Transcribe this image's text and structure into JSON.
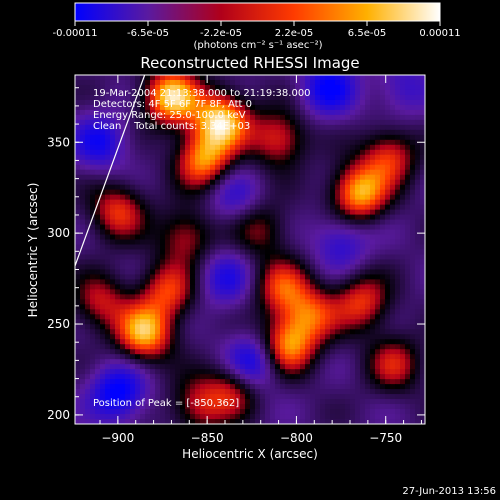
{
  "chart_data": {
    "type": "heatmap",
    "title": "Reconstructed RHESSI Image",
    "colorbar": {
      "tick_labels": [
        "-0.00011",
        "-6.5e-05",
        "-2.2e-05",
        "2.2e-05",
        "6.5e-05",
        "0.00011"
      ],
      "range": [
        -0.00011,
        0.00011
      ],
      "unit_label": "(photons cm⁻² s⁻¹ asec⁻²)",
      "colors": [
        "#0000ff",
        "#5a1aa0",
        "#b0001a",
        "#ff3b00",
        "#ffb000",
        "#ffffff"
      ]
    },
    "xlabel": "Heliocentric X (arcsec)",
    "ylabel": "Heliocentric Y (arcsec)",
    "xlim": [
      -924,
      -728
    ],
    "ylim": [
      195,
      387
    ],
    "xticks": [
      -900,
      -850,
      -800,
      -750
    ],
    "yticks": [
      200,
      250,
      300,
      350
    ],
    "info": [
      "19-Mar-2004 21:13:38.000 to 21:19:38.000",
      "Detectors: 4F 5F 6F 7F 8F, Att 0",
      "Energy Range: 25.0-100.0 keV",
      "Clean    Total counts: 3.34E+03"
    ],
    "peak_text": "Position of Peak = [-850,362]",
    "peak": [
      -850,
      362
    ],
    "limb_line": [
      [
        -924,
        282
      ],
      [
        -885,
        387
      ]
    ],
    "blobs": [
      {
        "x": -870,
        "y": 375,
        "v": 1.0
      },
      {
        "x": -842,
        "y": 362,
        "v": 1.0
      },
      {
        "x": -852,
        "y": 340,
        "v": 0.8
      },
      {
        "x": -885,
        "y": 245,
        "v": 0.9
      },
      {
        "x": -872,
        "y": 268,
        "v": 0.6
      },
      {
        "x": -862,
        "y": 298,
        "v": 0.5
      },
      {
        "x": -805,
        "y": 238,
        "v": 0.8
      },
      {
        "x": -808,
        "y": 270,
        "v": 0.6
      },
      {
        "x": -792,
        "y": 255,
        "v": 0.6
      },
      {
        "x": -765,
        "y": 322,
        "v": 0.9
      },
      {
        "x": -748,
        "y": 342,
        "v": 0.6
      },
      {
        "x": -763,
        "y": 262,
        "v": 0.6
      },
      {
        "x": -745,
        "y": 228,
        "v": 0.5
      },
      {
        "x": -810,
        "y": 352,
        "v": 0.6
      },
      {
        "x": -900,
        "y": 312,
        "v": 0.6
      },
      {
        "x": -910,
        "y": 262,
        "v": 0.5
      },
      {
        "x": -835,
        "y": 215,
        "v": 0.55
      },
      {
        "x": -855,
        "y": 205,
        "v": 0.5
      },
      {
        "x": -820,
        "y": 302,
        "v": 0.4
      },
      {
        "x": -900,
        "y": 212,
        "v": -0.8
      },
      {
        "x": -825,
        "y": 228,
        "v": -0.8
      },
      {
        "x": -782,
        "y": 380,
        "v": -0.7
      },
      {
        "x": -910,
        "y": 350,
        "v": -0.6
      },
      {
        "x": -840,
        "y": 275,
        "v": -0.5
      },
      {
        "x": -775,
        "y": 295,
        "v": -0.5
      },
      {
        "x": -740,
        "y": 380,
        "v": -0.4
      },
      {
        "x": -835,
        "y": 320,
        "v": -0.4
      }
    ]
  },
  "footer_date": "27-Jun-2013 13:56"
}
